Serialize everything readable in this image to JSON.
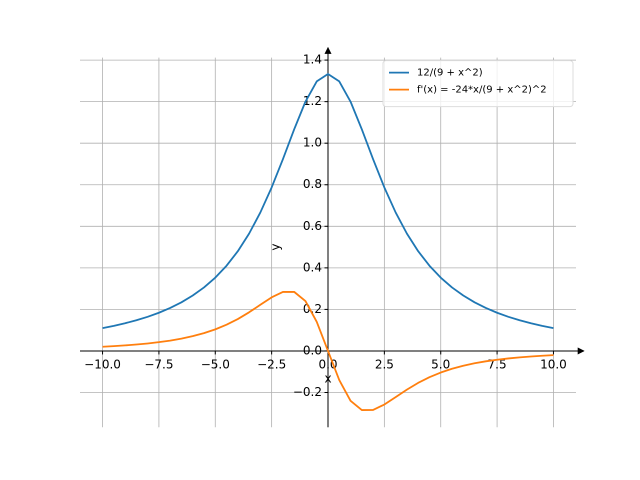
{
  "chart_data": {
    "type": "line",
    "x_label": "x",
    "y_label": "y",
    "x": [
      -10,
      -9.5,
      -9,
      -8.5,
      -8,
      -7.5,
      -7,
      -6.5,
      -6,
      -5.5,
      -5,
      -4.5,
      -4,
      -3.5,
      -3,
      -2.5,
      -2,
      -1.5,
      -1,
      -0.5,
      0,
      0.5,
      1,
      1.5,
      2,
      2.5,
      3,
      3.5,
      4,
      4.5,
      5,
      5.5,
      6,
      6.5,
      7,
      7.5,
      8,
      8.5,
      9,
      9.5,
      10
    ],
    "series": [
      {
        "name": "12/(9 + x^2)",
        "color": "#1f77b4",
        "values": [
          0.1101,
          0.1209,
          0.1333,
          0.1477,
          0.1644,
          0.1839,
          0.2069,
          0.2341,
          0.2667,
          0.3057,
          0.3529,
          0.4103,
          0.48,
          0.5647,
          0.6667,
          0.7869,
          0.9231,
          1.0667,
          1.2,
          1.2973,
          1.3333,
          1.2973,
          1.2,
          1.0667,
          0.9231,
          0.7869,
          0.6667,
          0.5647,
          0.48,
          0.4103,
          0.3529,
          0.3057,
          0.2667,
          0.2341,
          0.2069,
          0.1839,
          0.1644,
          0.1477,
          0.1333,
          0.1209,
          0.1101
        ]
      },
      {
        "name": "f'(x) = -24*x/(9 + x^2)^2",
        "color": "#ff7f0e",
        "values": [
          0.0202,
          0.0231,
          0.0267,
          0.0309,
          0.036,
          0.0423,
          0.0499,
          0.0594,
          0.0711,
          0.0857,
          0.1038,
          0.1262,
          0.1536,
          0.186,
          0.2222,
          0.258,
          0.284,
          0.2844,
          0.24,
          0.1402,
          0,
          -0.1402,
          -0.24,
          -0.2844,
          -0.284,
          -0.258,
          -0.2222,
          -0.186,
          -0.1536,
          -0.1262,
          -0.1038,
          -0.0857,
          -0.0711,
          -0.0594,
          -0.0499,
          -0.0423,
          -0.036,
          -0.0309,
          -0.0267,
          -0.0231,
          -0.0202
        ]
      }
    ],
    "xlim": [
      -11,
      11
    ],
    "ylim": [
      -0.367,
      1.412
    ],
    "xticks": [
      {
        "value": -10,
        "label": "−10.0"
      },
      {
        "value": -7.5,
        "label": "−7.5"
      },
      {
        "value": -5,
        "label": "−5.0"
      },
      {
        "value": -2.5,
        "label": "−2.5"
      },
      {
        "value": 0,
        "label": "0.0"
      },
      2.5,
      {
        "value": 5,
        "label": "5.0"
      },
      7.5,
      {
        "value": 10,
        "label": "10.0"
      }
    ],
    "yticks": [
      {
        "value": -0.2,
        "label": "−0.2"
      },
      {
        "value": 0,
        "label": "0.0"
      },
      0.2,
      0.4,
      0.6,
      0.8,
      {
        "value": 1,
        "label": "1.0"
      },
      1.2,
      1.4
    ],
    "grid": true,
    "legend": "upper right"
  }
}
